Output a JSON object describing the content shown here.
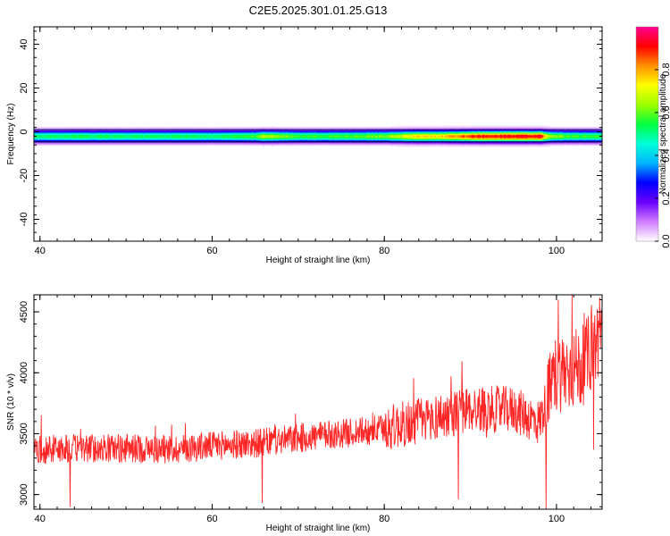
{
  "title": "C2E5.2025.301.01.25.G13",
  "chart_data": [
    {
      "type": "heatmap",
      "title": "C2E5.2025.301.01.25.G13",
      "xlabel": "Height of straight line (km)",
      "ylabel": "Frequency (Hz)",
      "xlim": [
        39.3,
        105.3
      ],
      "ylim": [
        -50,
        48
      ],
      "xticks": [
        40,
        60,
        80,
        100
      ],
      "yticks": [
        -40,
        -20,
        0,
        20,
        40
      ],
      "colorbar": {
        "label": "Normalized spectral amplitude",
        "range": [
          0,
          1
        ],
        "ticks": [
          0.0,
          0.2,
          0.4,
          0.6,
          0.8
        ],
        "colors": [
          "#ffffff",
          "#d07dff",
          "#6a00ff",
          "#0000ff",
          "#00b4ff",
          "#00ffd8",
          "#00ff40",
          "#9cff00",
          "#ffff00",
          "#ff9000",
          "#ff0000",
          "#ff0090"
        ]
      },
      "band": {
        "center_hz": -2,
        "samples_x": [
          40,
          45,
          50,
          55,
          60,
          65,
          66,
          70,
          75,
          80,
          84,
          86,
          88,
          90,
          92,
          94,
          96,
          98,
          99,
          100,
          102,
          104,
          105
        ],
        "peak_amplitude": [
          0.55,
          0.57,
          0.55,
          0.56,
          0.55,
          0.6,
          0.7,
          0.6,
          0.6,
          0.65,
          0.8,
          0.78,
          0.85,
          0.92,
          0.95,
          0.96,
          0.97,
          0.97,
          0.7,
          0.65,
          0.6,
          0.6,
          0.6
        ]
      }
    },
    {
      "type": "line",
      "xlabel": "Height of straight line (km)",
      "ylabel": "SNR (10 * v/v)",
      "xlim": [
        39.3,
        105.3
      ],
      "ylim": [
        2880,
        4640
      ],
      "xticks": [
        40,
        60,
        80,
        100
      ],
      "yticks": [
        3000,
        3500,
        4000,
        4500
      ],
      "color": "#ff0000",
      "trend": {
        "x": [
          39.3,
          45,
          50,
          55,
          60,
          65,
          70,
          75,
          80,
          85,
          90,
          95,
          98,
          100,
          103,
          105.3
        ],
        "y": [
          3370,
          3380,
          3380,
          3370,
          3400,
          3420,
          3460,
          3500,
          3540,
          3620,
          3700,
          3700,
          3590,
          4000,
          4050,
          4350
        ]
      },
      "spread": 120,
      "dips": [
        {
          "x": 43.5,
          "y": 2900
        },
        {
          "x": 65.8,
          "y": 2930
        },
        {
          "x": 88.6,
          "y": 2960
        },
        {
          "x": 98.8,
          "y": 2880
        },
        {
          "x": 104.3,
          "y": 3370
        }
      ],
      "spikes": [
        {
          "x": 100.2,
          "y": 4600
        },
        {
          "x": 101.8,
          "y": 4640
        },
        {
          "x": 105.0,
          "y": 4620
        }
      ]
    }
  ]
}
